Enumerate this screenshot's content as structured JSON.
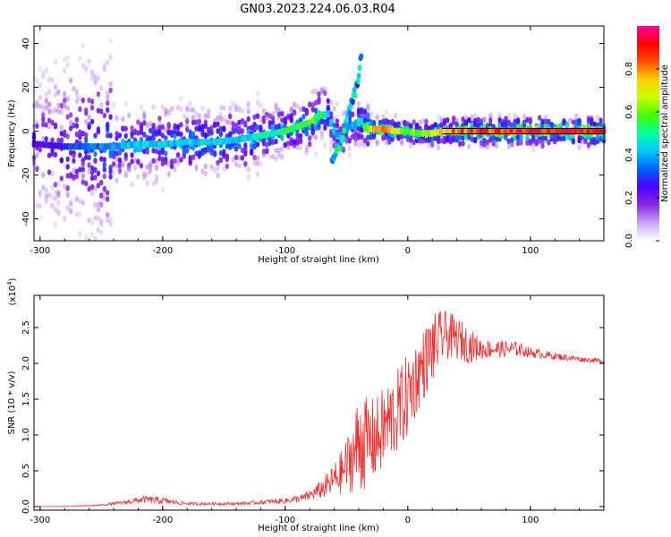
{
  "title": "GN03.2023.224.06.03.R04",
  "chart_data": [
    {
      "type": "heatmap",
      "panel": "top",
      "xlabel": "Height of straight line (km)",
      "ylabel": "Frequency (Hz)",
      "xlim": [
        -305,
        160
      ],
      "ylim": [
        -50,
        48
      ],
      "xticks": [
        -300,
        -200,
        -100,
        0,
        100
      ],
      "xtick_labels": [
        "-300",
        "-200",
        "-100",
        "0",
        "100"
      ],
      "yticks": [
        -40,
        -20,
        0,
        20,
        40
      ],
      "ytick_labels": [
        "-40",
        "-20",
        "0",
        "20",
        "40"
      ],
      "colorbar": {
        "label": "Normalized spectral amplitude",
        "range": [
          0,
          1
        ],
        "ticks": [
          0,
          0.2,
          0.4,
          0.6,
          0.8
        ],
        "tick_labels": [
          "0.0",
          "0.2",
          "0.4",
          "0.6",
          "0.8"
        ],
        "colormap": [
          "#ffffff",
          "#c9a7f5",
          "#8a2be2",
          "#4b00ff",
          "#0060ff",
          "#00c8ff",
          "#00ffa0",
          "#40ff00",
          "#c8ff00",
          "#ffd000",
          "#ff5000",
          "#ff0000",
          "#ff00a0"
        ]
      },
      "ridge": {
        "x": [
          -300,
          -280,
          -260,
          -240,
          -220,
          -200,
          -180,
          -160,
          -140,
          -120,
          -100,
          -90,
          -80,
          -72,
          -65,
          -60,
          -55,
          -48,
          -42,
          -38,
          -35,
          -30,
          -20,
          -10,
          0,
          10,
          20,
          30,
          60,
          100,
          160
        ],
        "y": [
          -6,
          -7,
          -7,
          -7,
          -6,
          -6,
          -5,
          -5,
          -4,
          -2,
          0,
          2,
          4,
          7,
          8,
          0,
          -3,
          2,
          3,
          5,
          2,
          1,
          1,
          0,
          0,
          -1,
          -1,
          0,
          0,
          0,
          0
        ],
        "amplitude": [
          0.25,
          0.3,
          0.35,
          0.4,
          0.45,
          0.45,
          0.45,
          0.45,
          0.45,
          0.5,
          0.55,
          0.55,
          0.6,
          0.6,
          0.5,
          0.45,
          0.4,
          0.4,
          0.45,
          0.5,
          0.6,
          0.75,
          0.8,
          0.7,
          0.65,
          0.6,
          0.65,
          0.85,
          0.9,
          0.95,
          0.95
        ]
      },
      "branch": {
        "x": [
          -62,
          -55,
          -50,
          -45,
          -42,
          -40,
          -38
        ],
        "y": [
          -14,
          -6,
          4,
          14,
          20,
          26,
          34
        ]
      },
      "reference_line": {
        "x": [
          28,
          160
        ],
        "y": [
          0,
          0
        ]
      }
    },
    {
      "type": "line",
      "panel": "bottom",
      "xlabel": "Height of straight line (km)",
      "ylabel": "SNR (10 * v/v)",
      "multiplier_label": "(x10",
      "multiplier_exp": "4",
      "multiplier_close": ")",
      "xlim": [
        -305,
        160
      ],
      "ylim": [
        -0.05,
        2.95
      ],
      "xticks": [
        -300,
        -200,
        -100,
        0,
        100
      ],
      "xtick_labels": [
        "-300",
        "-200",
        "-100",
        "0",
        "100"
      ],
      "yticks": [
        0,
        0.5,
        1.0,
        1.5,
        2.0,
        2.5
      ],
      "ytick_labels": [
        "0.0",
        "0.5",
        "1.0",
        "1.5",
        "2.0",
        "2.5"
      ],
      "series": [
        {
          "color": "#f03030",
          "x": [
            -305,
            -280,
            -250,
            -230,
            -215,
            -200,
            -180,
            -160,
            -140,
            -120,
            -100,
            -85,
            -75,
            -65,
            -55,
            -45,
            -38,
            -33,
            -25,
            -15,
            -5,
            0,
            10,
            20,
            30,
            40,
            50,
            60,
            70,
            80,
            90,
            100,
            120,
            140,
            160
          ],
          "y": [
            0.0,
            0.0,
            0.02,
            0.06,
            0.1,
            0.08,
            0.04,
            0.04,
            0.04,
            0.06,
            0.08,
            0.12,
            0.2,
            0.3,
            0.45,
            0.7,
            0.95,
            0.9,
            0.95,
            1.2,
            1.4,
            1.55,
            1.9,
            2.2,
            2.4,
            2.35,
            2.25,
            2.2,
            2.2,
            2.2,
            2.2,
            2.15,
            2.1,
            2.06,
            2.03
          ],
          "noise": [
            0.0,
            0.005,
            0.01,
            0.03,
            0.05,
            0.05,
            0.02,
            0.02,
            0.02,
            0.03,
            0.04,
            0.06,
            0.1,
            0.18,
            0.3,
            0.5,
            0.8,
            0.6,
            0.6,
            0.6,
            0.6,
            0.6,
            0.5,
            0.5,
            0.35,
            0.3,
            0.25,
            0.15,
            0.12,
            0.12,
            0.1,
            0.07,
            0.05,
            0.04,
            0.03
          ]
        }
      ]
    }
  ]
}
